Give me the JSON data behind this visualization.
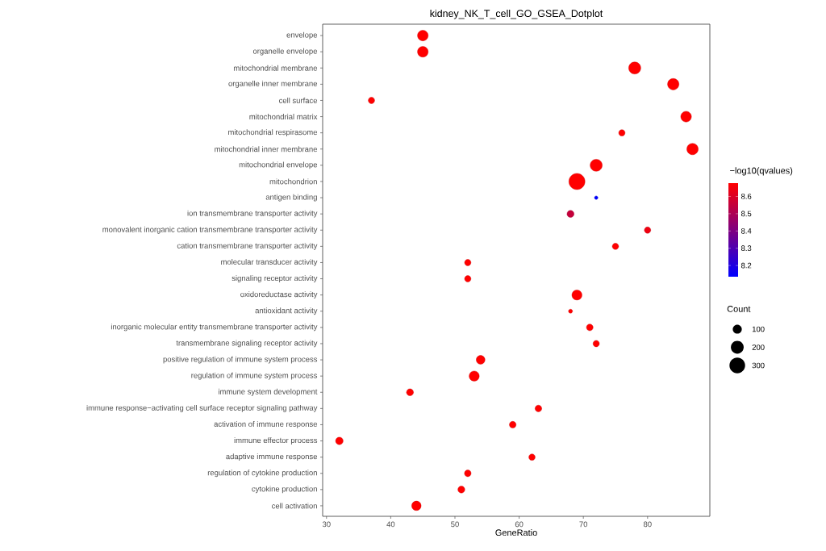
{
  "chart_data": {
    "type": "bubble",
    "orientation": "horizontal",
    "title": "kidney_NK_T_cell_GO_GSEA_Dotplot",
    "xlabel": "GeneRatio",
    "categories": [
      "envelope",
      "organelle envelope",
      "mitochondrial membrane",
      "organelle inner membrane",
      "cell surface",
      "mitochondrial matrix",
      "mitochondrial respirasome",
      "mitochondrial inner membrane",
      "mitochondrial envelope",
      "mitochondrion",
      "antigen binding",
      "ion transmembrane transporter activity",
      "monovalent inorganic cation transmembrane transporter activity",
      "cation transmembrane transporter activity",
      "molecular transducer activity",
      "signaling receptor activity",
      "oxidoreductase activity",
      "antioxidant activity",
      "inorganic molecular entity transmembrane transporter activity",
      "transmembrane signaling receptor activity",
      "positive regulation of immune system process",
      "regulation of immune system process",
      "immune system development",
      "immune response−activating cell surface receptor signaling pathway",
      "activation of immune response",
      "immune effector process",
      "adaptive immune response",
      "regulation of cytokine production",
      "cytokine production",
      "cell activation"
    ],
    "values": [
      45,
      45,
      78,
      84,
      37,
      86,
      76,
      87,
      72,
      69,
      72,
      68,
      80,
      75,
      52,
      52,
      69,
      68,
      71,
      72,
      54,
      53,
      43,
      63,
      59,
      32,
      62,
      52,
      51,
      44
    ],
    "sizes": [
      140,
      140,
      180,
      160,
      50,
      140,
      50,
      160,
      180,
      320,
      15,
      60,
      50,
      50,
      50,
      50,
      125,
      20,
      55,
      50,
      95,
      125,
      60,
      55,
      55,
      70,
      50,
      55,
      60,
      110
    ],
    "cvalues": [
      8.677,
      8.677,
      8.677,
      8.677,
      8.677,
      8.677,
      8.677,
      8.677,
      8.677,
      8.677,
      8.135,
      8.55,
      8.64,
      8.677,
      8.677,
      8.677,
      8.677,
      8.677,
      8.677,
      8.677,
      8.677,
      8.677,
      8.677,
      8.677,
      8.677,
      8.677,
      8.677,
      8.677,
      8.677,
      8.677
    ],
    "clabel": "−log10(qvalues)",
    "clim": [
      8.135,
      8.677
    ],
    "cticks": [
      8.2,
      8.3,
      8.4,
      8.5,
      8.6
    ],
    "legend_title": "Count",
    "size_legend": [
      100,
      200,
      300
    ],
    "xlim": [
      29.4,
      89.7
    ],
    "xticks": [
      30,
      40,
      50,
      60,
      70,
      80
    ]
  }
}
